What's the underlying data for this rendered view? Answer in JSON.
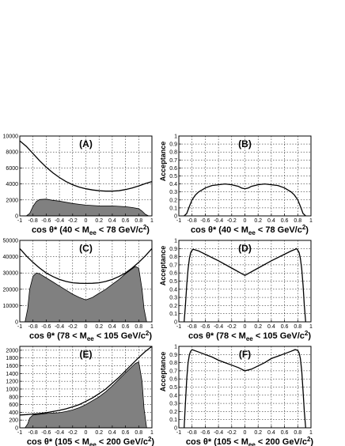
{
  "chart_data": [
    {
      "id": "A",
      "tag": "(A)",
      "type": "area",
      "xlabel": {
        "pre": "cos θ* (40 < M",
        "sub": "ee",
        "post": " < 78 GeV/c",
        "sup": "2",
        "end": ")"
      },
      "ylabel": "",
      "xlim": [
        -1,
        1
      ],
      "ylim": [
        0,
        10000
      ],
      "xticks": [
        -1,
        -0.8,
        -0.6,
        -0.4,
        -0.2,
        0,
        0.2,
        0.4,
        0.6,
        0.8,
        1
      ],
      "xtick_labels": [
        "-1",
        "-0.8",
        "-0.6",
        "-0.4",
        "-0.2",
        "0",
        "0.2",
        "0.4",
        "0.6",
        "0.8",
        "1"
      ],
      "yticks": [
        0,
        2000,
        4000,
        6000,
        8000,
        10000
      ],
      "ytick_labels": [
        "0",
        "2000",
        "4000",
        "6000",
        "8000",
        "10000"
      ],
      "grid": true,
      "series": [
        {
          "style": "line",
          "x": [
            -1,
            -0.9,
            -0.8,
            -0.7,
            -0.6,
            -0.5,
            -0.4,
            -0.3,
            -0.2,
            -0.1,
            0,
            0.1,
            0.2,
            0.3,
            0.4,
            0.5,
            0.6,
            0.7,
            0.8,
            0.9,
            1
          ],
          "y": [
            9400,
            8700,
            7800,
            6900,
            6100,
            5400,
            4800,
            4300,
            3900,
            3600,
            3400,
            3250,
            3150,
            3100,
            3100,
            3150,
            3300,
            3500,
            3750,
            4050,
            4300
          ]
        },
        {
          "style": "filled",
          "x": [
            -1,
            -0.9,
            -0.85,
            -0.8,
            -0.75,
            -0.7,
            -0.6,
            -0.5,
            -0.4,
            -0.3,
            -0.2,
            -0.1,
            0,
            0.1,
            0.2,
            0.3,
            0.4,
            0.5,
            0.6,
            0.7,
            0.8,
            0.85,
            0.9,
            0.95,
            1
          ],
          "y": [
            0,
            0,
            300,
            1200,
            1800,
            2050,
            2100,
            1950,
            1850,
            1700,
            1550,
            1450,
            1350,
            1300,
            1250,
            1250,
            1250,
            1200,
            1150,
            1050,
            900,
            600,
            200,
            0,
            0
          ]
        }
      ]
    },
    {
      "id": "B",
      "tag": "(B)",
      "type": "line",
      "xlabel": {
        "pre": "cos θ* (40 < M",
        "sub": "ee",
        "post": " < 78 GeV/c",
        "sup": "2",
        "end": ")"
      },
      "ylabel": "Acceptance",
      "xlim": [
        -1,
        1
      ],
      "ylim": [
        0,
        1
      ],
      "xticks": [
        -1,
        -0.8,
        -0.6,
        -0.4,
        -0.2,
        0,
        0.2,
        0.4,
        0.6,
        0.8,
        1
      ],
      "xtick_labels": [
        "-1",
        "-0.8",
        "-0.6",
        "-0.4",
        "-0.2",
        "0",
        "0.2",
        "0.4",
        "0.6",
        "0.8",
        "1"
      ],
      "yticks": [
        0,
        0.1,
        0.2,
        0.3,
        0.4,
        0.5,
        0.6,
        0.7,
        0.8,
        0.9,
        1
      ],
      "ytick_labels": [
        "0",
        "0.1",
        "0.2",
        "0.3",
        "0.4",
        "0.5",
        "0.6",
        "0.7",
        "0.8",
        "0.9",
        "1"
      ],
      "grid": true,
      "series": [
        {
          "style": "line",
          "x": [
            -0.92,
            -0.88,
            -0.84,
            -0.8,
            -0.75,
            -0.7,
            -0.6,
            -0.5,
            -0.4,
            -0.3,
            -0.2,
            -0.1,
            -0.05,
            0,
            0.05,
            0.1,
            0.2,
            0.3,
            0.4,
            0.5,
            0.6,
            0.7,
            0.75,
            0.8,
            0.84,
            0.88,
            0.92
          ],
          "y": [
            0,
            0.03,
            0.12,
            0.2,
            0.26,
            0.3,
            0.35,
            0.38,
            0.39,
            0.4,
            0.39,
            0.37,
            0.35,
            0.34,
            0.35,
            0.37,
            0.39,
            0.4,
            0.39,
            0.38,
            0.35,
            0.3,
            0.26,
            0.2,
            0.12,
            0.03,
            0
          ]
        }
      ]
    },
    {
      "id": "C",
      "tag": "(C)",
      "type": "area",
      "xlabel": {
        "pre": "cos θ* (78 < M",
        "sub": "ee",
        "post": " < 105 GeV/c",
        "sup": "2",
        "end": ")"
      },
      "ylabel": "",
      "xlim": [
        -1,
        1
      ],
      "ylim": [
        0,
        50000
      ],
      "xticks": [
        -1,
        -0.8,
        -0.6,
        -0.4,
        -0.2,
        0,
        0.2,
        0.4,
        0.6,
        0.8,
        1
      ],
      "xtick_labels": [
        "-1",
        "-0.8",
        "-0.6",
        "-0.4",
        "-0.2",
        "0",
        "0.2",
        "0.4",
        "0.6",
        "0.8",
        "1"
      ],
      "yticks": [
        0,
        10000,
        20000,
        30000,
        40000,
        50000
      ],
      "ytick_labels": [
        "0",
        "10000",
        "20000",
        "30000",
        "40000",
        "50000"
      ],
      "grid": true,
      "series": [
        {
          "style": "line",
          "x": [
            -1,
            -0.9,
            -0.8,
            -0.7,
            -0.6,
            -0.5,
            -0.4,
            -0.3,
            -0.2,
            -0.1,
            0,
            0.1,
            0.2,
            0.3,
            0.4,
            0.5,
            0.6,
            0.7,
            0.8,
            0.9,
            1
          ],
          "y": [
            45000,
            40500,
            36500,
            33000,
            30000,
            27800,
            26000,
            24800,
            24000,
            23700,
            23600,
            23700,
            24000,
            24800,
            26000,
            27800,
            30000,
            33000,
            36500,
            40500,
            45000
          ]
        },
        {
          "style": "filled",
          "x": [
            -1,
            -0.92,
            -0.88,
            -0.85,
            -0.8,
            -0.75,
            -0.7,
            -0.6,
            -0.5,
            -0.4,
            -0.3,
            -0.2,
            -0.1,
            0,
            0.1,
            0.2,
            0.3,
            0.4,
            0.5,
            0.6,
            0.7,
            0.75,
            0.8,
            0.85,
            0.88,
            0.92,
            1
          ],
          "y": [
            0,
            0,
            8000,
            20000,
            28000,
            30000,
            29500,
            27000,
            24500,
            22000,
            19500,
            17000,
            15000,
            13500,
            15000,
            17500,
            20000,
            23000,
            26000,
            29500,
            32500,
            34000,
            33000,
            20000,
            8000,
            0,
            0
          ]
        }
      ]
    },
    {
      "id": "D",
      "tag": "(D)",
      "type": "line",
      "xlabel": {
        "pre": "cos θ* (78 < M",
        "sub": "ee",
        "post": " < 105 GeV/c",
        "sup": "2",
        "end": ")"
      },
      "ylabel": "Acceptance",
      "xlim": [
        -1,
        1
      ],
      "ylim": [
        0,
        1
      ],
      "xticks": [
        -1,
        -0.8,
        -0.6,
        -0.4,
        -0.2,
        0,
        0.2,
        0.4,
        0.6,
        0.8,
        1
      ],
      "xtick_labels": [
        "-1",
        "-0.8",
        "-0.6",
        "-0.4",
        "-0.2",
        "0",
        "0.2",
        "0.4",
        "0.6",
        "0.8",
        "1"
      ],
      "yticks": [
        0,
        0.1,
        0.2,
        0.3,
        0.4,
        0.5,
        0.6,
        0.7,
        0.8,
        0.9,
        1
      ],
      "ytick_labels": [
        "0",
        "0.1",
        "0.2",
        "0.3",
        "0.4",
        "0.5",
        "0.6",
        "0.7",
        "0.8",
        "0.9",
        "1"
      ],
      "grid": true,
      "series": [
        {
          "style": "line",
          "x": [
            -0.92,
            -0.9,
            -0.88,
            -0.86,
            -0.84,
            -0.82,
            -0.8,
            -0.78,
            -0.7,
            -0.6,
            -0.4,
            -0.2,
            0,
            0.2,
            0.4,
            0.6,
            0.7,
            0.76,
            0.78,
            0.8,
            0.82,
            0.84,
            0.86,
            0.88,
            0.9,
            0.92
          ],
          "y": [
            0,
            0.2,
            0.45,
            0.65,
            0.78,
            0.85,
            0.88,
            0.89,
            0.87,
            0.83,
            0.75,
            0.66,
            0.57,
            0.66,
            0.75,
            0.83,
            0.87,
            0.89,
            0.9,
            0.88,
            0.85,
            0.78,
            0.65,
            0.45,
            0.2,
            0
          ]
        }
      ]
    },
    {
      "id": "E",
      "tag": "(E)",
      "type": "area",
      "xlabel": {
        "pre": "cos θ* (105 < M",
        "sub": "ee",
        "post": " < 200 GeV/c",
        "sup": "2",
        "end": ")"
      },
      "ylabel": "",
      "xlim": [
        -1,
        1
      ],
      "ylim": [
        0,
        2100
      ],
      "xticks": [
        -1,
        -0.8,
        -0.6,
        -0.4,
        -0.2,
        0,
        0.2,
        0.4,
        0.6,
        0.8,
        1
      ],
      "xtick_labels": [
        "-1",
        "-0.8",
        "-0.6",
        "-0.4",
        "-0.2",
        "0",
        "0.2",
        "0.4",
        "0.6",
        "0.8",
        "1"
      ],
      "yticks": [
        0,
        200,
        400,
        600,
        800,
        1000,
        1200,
        1400,
        1600,
        1800,
        2000
      ],
      "ytick_labels": [
        "0",
        "200",
        "400",
        "600",
        "800",
        "1000",
        "1200",
        "1400",
        "1600",
        "1800",
        "2000"
      ],
      "grid": true,
      "series": [
        {
          "style": "line",
          "x": [
            -1,
            -0.9,
            -0.8,
            -0.7,
            -0.6,
            -0.5,
            -0.4,
            -0.3,
            -0.2,
            -0.1,
            0,
            0.1,
            0.2,
            0.3,
            0.4,
            0.5,
            0.6,
            0.7,
            0.8,
            0.9,
            1
          ],
          "y": [
            330,
            340,
            355,
            370,
            390,
            420,
            450,
            490,
            540,
            600,
            680,
            770,
            880,
            1000,
            1150,
            1300,
            1470,
            1640,
            1810,
            1970,
            2100
          ]
        },
        {
          "style": "filled",
          "x": [
            -1,
            -0.92,
            -0.88,
            -0.85,
            -0.8,
            -0.7,
            -0.6,
            -0.5,
            -0.4,
            -0.3,
            -0.2,
            -0.1,
            0,
            0.1,
            0.2,
            0.3,
            0.4,
            0.5,
            0.6,
            0.7,
            0.75,
            0.8,
            0.85,
            0.88,
            0.92,
            1
          ],
          "y": [
            0,
            0,
            100,
            250,
            330,
            350,
            370,
            380,
            390,
            420,
            460,
            520,
            600,
            700,
            800,
            930,
            1080,
            1250,
            1420,
            1580,
            1660,
            1700,
            1200,
            500,
            0,
            0
          ]
        }
      ]
    },
    {
      "id": "F",
      "tag": "(F)",
      "type": "line",
      "xlabel": {
        "pre": "cos θ* (105 < M",
        "sub": "ee",
        "post": " < 200 GeV/c",
        "sup": "2",
        "end": ")"
      },
      "ylabel": "Acceptance",
      "xlim": [
        -1,
        1
      ],
      "ylim": [
        0,
        1
      ],
      "xticks": [
        -1,
        -0.8,
        -0.6,
        -0.4,
        -0.2,
        0,
        0.2,
        0.4,
        0.6,
        0.8,
        1
      ],
      "xtick_labels": [
        "-1",
        "-0.8",
        "-0.6",
        "-0.4",
        "-0.2",
        "0",
        "0.2",
        "0.4",
        "0.6",
        "0.8",
        "1"
      ],
      "yticks": [
        0,
        0.1,
        0.2,
        0.3,
        0.4,
        0.5,
        0.6,
        0.7,
        0.8,
        0.9,
        1
      ],
      "ytick_labels": [
        "0",
        "0.1",
        "0.2",
        "0.3",
        "0.4",
        "0.5",
        "0.6",
        "0.7",
        "0.8",
        "0.9",
        "1"
      ],
      "grid": true,
      "series": [
        {
          "style": "line",
          "x": [
            -0.92,
            -0.9,
            -0.88,
            -0.86,
            -0.84,
            -0.82,
            -0.8,
            -0.7,
            -0.6,
            -0.5,
            -0.4,
            -0.3,
            -0.2,
            -0.1,
            0,
            0.1,
            0.2,
            0.3,
            0.4,
            0.5,
            0.6,
            0.7,
            0.76,
            0.8,
            0.82,
            0.84,
            0.86,
            0.88,
            0.9,
            0.92
          ],
          "y": [
            0,
            0.3,
            0.6,
            0.8,
            0.9,
            0.94,
            0.96,
            0.93,
            0.9,
            0.87,
            0.83,
            0.8,
            0.77,
            0.74,
            0.7,
            0.72,
            0.76,
            0.8,
            0.85,
            0.88,
            0.91,
            0.94,
            0.96,
            0.95,
            0.92,
            0.85,
            0.7,
            0.45,
            0.2,
            0
          ]
        }
      ]
    }
  ]
}
